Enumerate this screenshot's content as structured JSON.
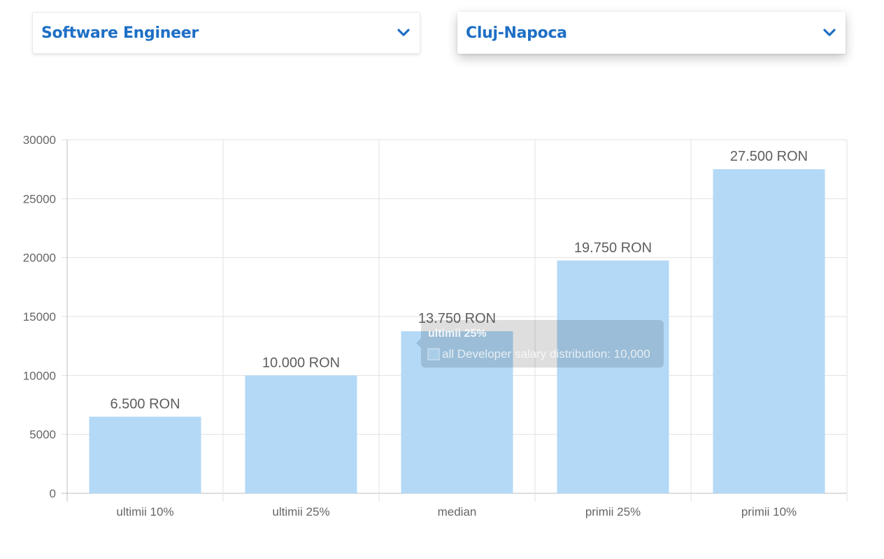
{
  "filters": {
    "job_title": "Software Engineer",
    "city": "Cluj-Napoca"
  },
  "colors": {
    "accent": "#1e6fc5",
    "bar": "#b3d9f7",
    "grid": "#e1e1e1",
    "axis_text": "#666666",
    "label_text": "#5e5e5e"
  },
  "icons": {
    "dropdown": "chevron-down-icon"
  },
  "tooltip": {
    "title": "ultimii 25%",
    "body": "all Developer salary distribution: 10,000"
  },
  "chart_data": {
    "type": "bar",
    "categories": [
      "ultimii 10%",
      "ultimii 25%",
      "median",
      "primii 25%",
      "primii 10%"
    ],
    "values": [
      6500,
      10000,
      13750,
      19750,
      27500
    ],
    "data_labels": [
      "6.500 RON",
      "10.000 RON",
      "13.750 RON",
      "19.750 RON",
      "27.500 RON"
    ],
    "ylim": [
      0,
      30000
    ],
    "yticks": [
      0,
      5000,
      10000,
      15000,
      20000,
      25000,
      30000
    ],
    "grid": true,
    "legend": "none"
  }
}
